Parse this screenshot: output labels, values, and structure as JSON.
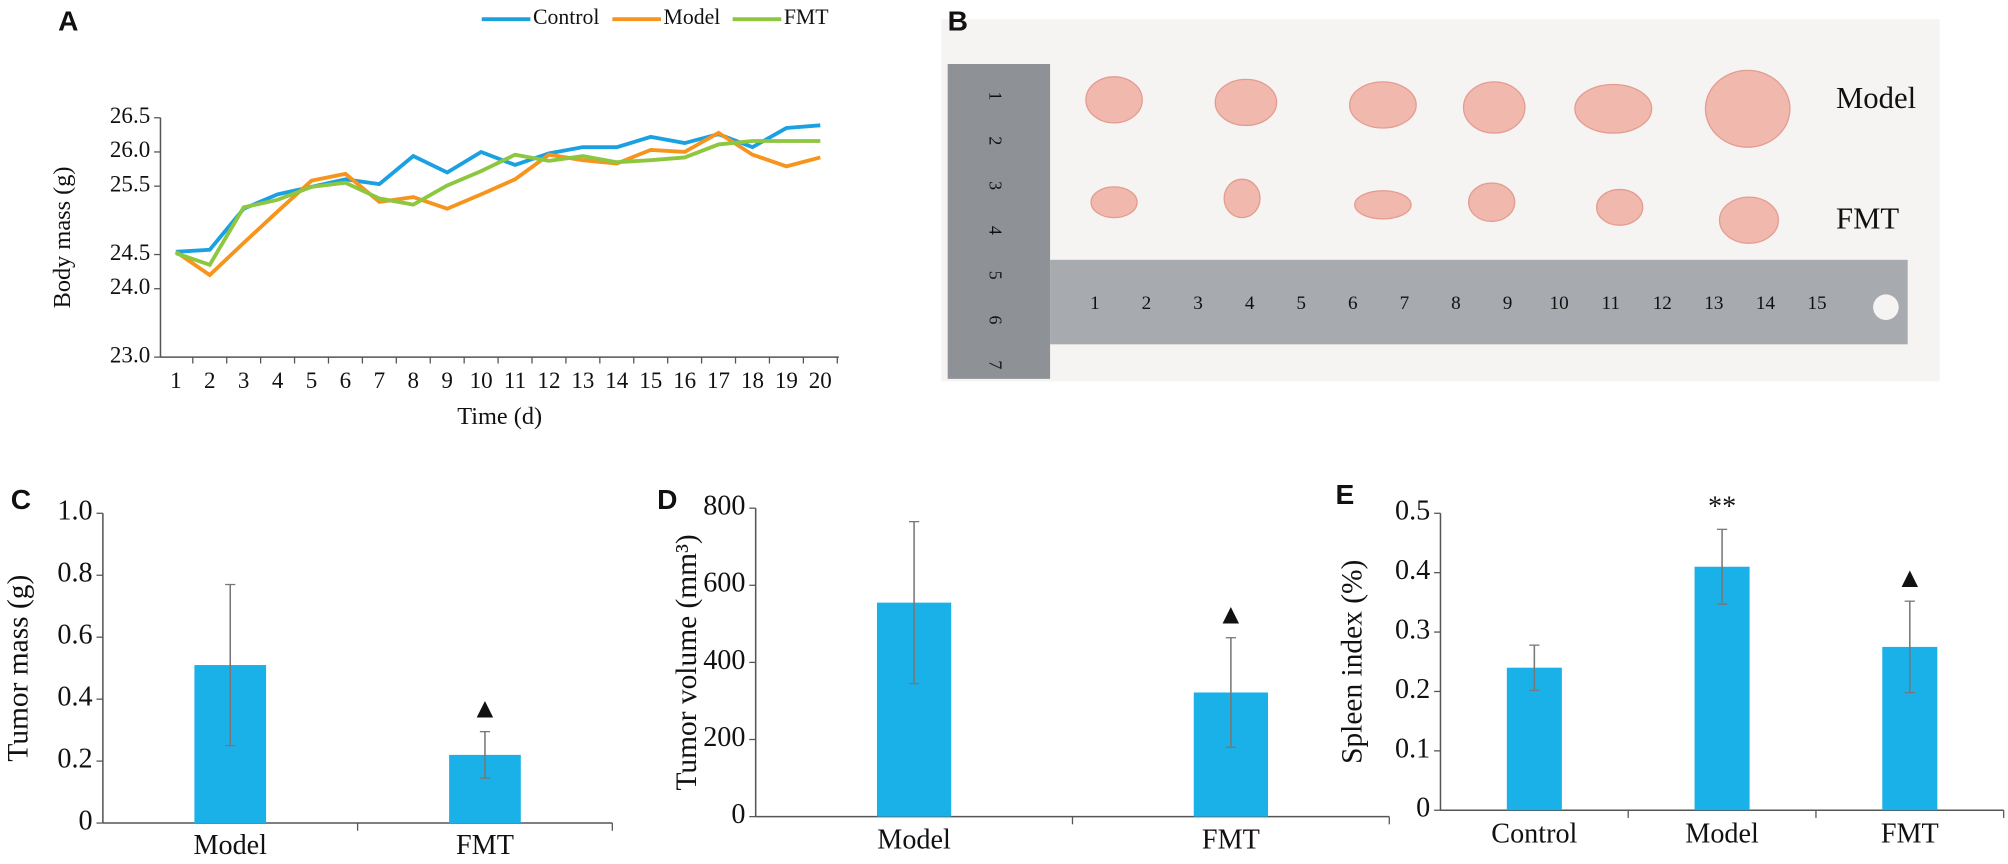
{
  "chart_data": [
    {
      "type": "line",
      "panel": "A",
      "ylabel": "Body mass (g)",
      "xlabel": "Time (d)",
      "categories": [
        "1",
        "2",
        "3",
        "4",
        "5",
        "6",
        "7",
        "8",
        "9",
        "10",
        "11",
        "12",
        "13",
        "14",
        "15",
        "16",
        "17",
        "18",
        "19",
        "20"
      ],
      "ylim": [
        23.0,
        26.5
      ],
      "yticks": [
        {
          "value": 26.5,
          "label": "26.5"
        },
        {
          "value": 26.0,
          "label": "26.0"
        },
        25.5,
        24.5,
        {
          "value": 24.0,
          "label": "24.0"
        },
        {
          "value": 23.0,
          "label": "23.0"
        }
      ],
      "series": [
        {
          "name": "Control",
          "color": "#1ba1e2",
          "values": [
            24.54,
            24.57,
            25.17,
            25.38,
            25.49,
            25.6,
            25.53,
            25.94,
            25.7,
            26.0,
            25.81,
            25.98,
            26.07,
            26.07,
            26.22,
            26.13,
            26.26,
            26.07,
            26.35,
            26.39
          ]
        },
        {
          "name": "Model",
          "color": "#f7941d",
          "values": [
            24.54,
            24.2,
            24.67,
            25.13,
            25.58,
            25.68,
            25.27,
            25.34,
            25.17,
            25.38,
            25.6,
            25.96,
            25.88,
            25.83,
            26.03,
            26.0,
            26.28,
            25.96,
            25.79,
            25.92
          ]
        },
        {
          "name": "FMT",
          "color": "#8dc63f",
          "values": [
            24.52,
            24.35,
            25.19,
            25.3,
            25.49,
            25.55,
            25.32,
            25.23,
            25.51,
            25.72,
            25.96,
            25.87,
            25.94,
            25.85,
            25.88,
            25.92,
            26.11,
            26.16,
            26.16,
            26.16
          ]
        }
      ]
    },
    {
      "type": "bar",
      "panel": "C",
      "ylabel": "Tumor mass (g)",
      "categories": [
        "Model",
        "FMT"
      ],
      "values": [
        0.51,
        0.22
      ],
      "errors": [
        0.26,
        0.075
      ],
      "color": "#1ab0e8",
      "ylim": [
        0,
        1
      ],
      "yticks": [
        0,
        0.2,
        0.4,
        0.6,
        0.8,
        {
          "value": 1,
          "label": "1.0"
        }
      ],
      "annotations": [
        {
          "text": "▲",
          "category": "FMT"
        }
      ]
    },
    {
      "type": "bar",
      "panel": "D",
      "ylabel": "Tumor volume (mm³)",
      "categories": [
        "Model",
        "FMT"
      ],
      "values": [
        555,
        322
      ],
      "errors": [
        210,
        142
      ],
      "color": "#1ab0e8",
      "ylim": [
        0,
        800
      ],
      "yticks": [
        0,
        200,
        400,
        600,
        800
      ],
      "annotations": [
        {
          "text": "▲",
          "category": "FMT"
        }
      ]
    },
    {
      "type": "bar",
      "panel": "E",
      "ylabel": "Spleen index (%)",
      "categories": [
        "Control",
        "Model",
        "FMT"
      ],
      "values": [
        0.24,
        0.41,
        0.275
      ],
      "errors": [
        0.038,
        0.063,
        0.077
      ],
      "color": "#1ab0e8",
      "ylim": [
        0,
        0.5
      ],
      "yticks": [
        0,
        0.1,
        0.2,
        0.3,
        0.4,
        0.5
      ],
      "annotations": [
        {
          "text": "**",
          "category": "Model"
        },
        {
          "text": "▲",
          "category": "FMT"
        }
      ]
    }
  ],
  "photo": {
    "panel": "B",
    "rows": [
      "Model",
      "FMT"
    ],
    "ruler_h": [
      "1",
      "2",
      "3",
      "4",
      "5",
      "6",
      "7",
      "8",
      "9",
      "10",
      "11",
      "12",
      "13",
      "14",
      "15"
    ],
    "ruler_v": [
      "1",
      "2",
      "3",
      "4",
      "5",
      "6",
      "7"
    ]
  }
}
